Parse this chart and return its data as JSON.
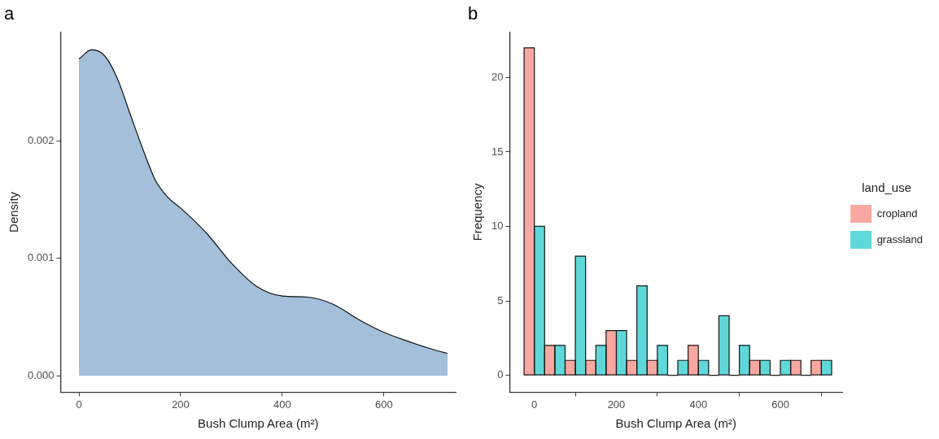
{
  "chart_data": [
    {
      "type": "area",
      "title": "a",
      "xlabel": "Bush Clump Area (m²)",
      "ylabel": "Density",
      "x": [
        0,
        25,
        50,
        75,
        100,
        125,
        150,
        175,
        200,
        250,
        300,
        350,
        400,
        450,
        500,
        550,
        600,
        650,
        700,
        725
      ],
      "series": [
        {
          "color": "#a3bfd9",
          "values": [
            0.0027,
            0.00278,
            0.00273,
            0.00254,
            0.00224,
            0.00194,
            0.00167,
            0.00152,
            0.00143,
            0.00122,
            0.00096,
            0.00076,
            0.00068,
            0.00067,
            0.00061,
            0.00048,
            0.00037,
            0.00029,
            0.00022,
            0.00019
          ]
        }
      ],
      "xlim": [
        -36,
        741
      ],
      "xticks": [
        0,
        200,
        400,
        600
      ],
      "ylim": [
        -0.00014,
        0.00293
      ],
      "yticks": [
        {
          "value": 0,
          "label": "0.000"
        },
        0.001,
        0.002
      ]
    },
    {
      "type": "histogram",
      "title": "b",
      "xlabel": "Bush Clump Area (m²)",
      "ylabel": "Frequency",
      "legend_title": "land_use",
      "legend": "right",
      "bins": [
        -25,
        25,
        75,
        125,
        175,
        225,
        275,
        325,
        375,
        425,
        475,
        525,
        575,
        625,
        675,
        725
      ],
      "series": [
        {
          "name": "cropland",
          "color": "#f8a8a1",
          "values": [
            22,
            2,
            1,
            1,
            3,
            1,
            1,
            0,
            2,
            0,
            0,
            1,
            0,
            1,
            1
          ]
        },
        {
          "name": "grassland",
          "color": "#5fd8da",
          "values": [
            10,
            2,
            8,
            2,
            3,
            6,
            2,
            1,
            1,
            4,
            2,
            1,
            1,
            0,
            1
          ]
        }
      ],
      "xlim": [
        -60,
        751
      ],
      "xticks": [
        0,
        200,
        400,
        600
      ],
      "ylim": [
        -1.14,
        23.06
      ],
      "yticks": [
        0,
        5,
        10,
        15,
        20
      ]
    }
  ]
}
